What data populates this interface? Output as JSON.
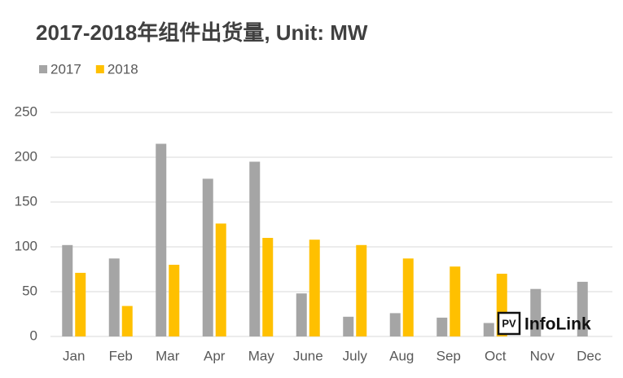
{
  "chart_data": {
    "type": "bar",
    "title": "2017-2018年组件出货量, Unit: MW",
    "categories": [
      "Jan",
      "Feb",
      "Mar",
      "Apr",
      "May",
      "June",
      "July",
      "Aug",
      "Sep",
      "Oct",
      "Nov",
      "Dec"
    ],
    "series": [
      {
        "name": "2017",
        "color": "#a5a5a5",
        "values": [
          102,
          87,
          215,
          176,
          195,
          48,
          22,
          26,
          21,
          15,
          53,
          61
        ]
      },
      {
        "name": "2018",
        "color": "#ffc000",
        "values": [
          71,
          34,
          80,
          126,
          110,
          108,
          102,
          87,
          78,
          70,
          null,
          null
        ]
      }
    ],
    "ylim": [
      0,
      250
    ],
    "yticks": [
      0,
      50,
      100,
      150,
      200,
      250
    ],
    "grid": true,
    "legend": "top-left",
    "watermark_badge": "PV",
    "watermark": "InfoLink"
  }
}
